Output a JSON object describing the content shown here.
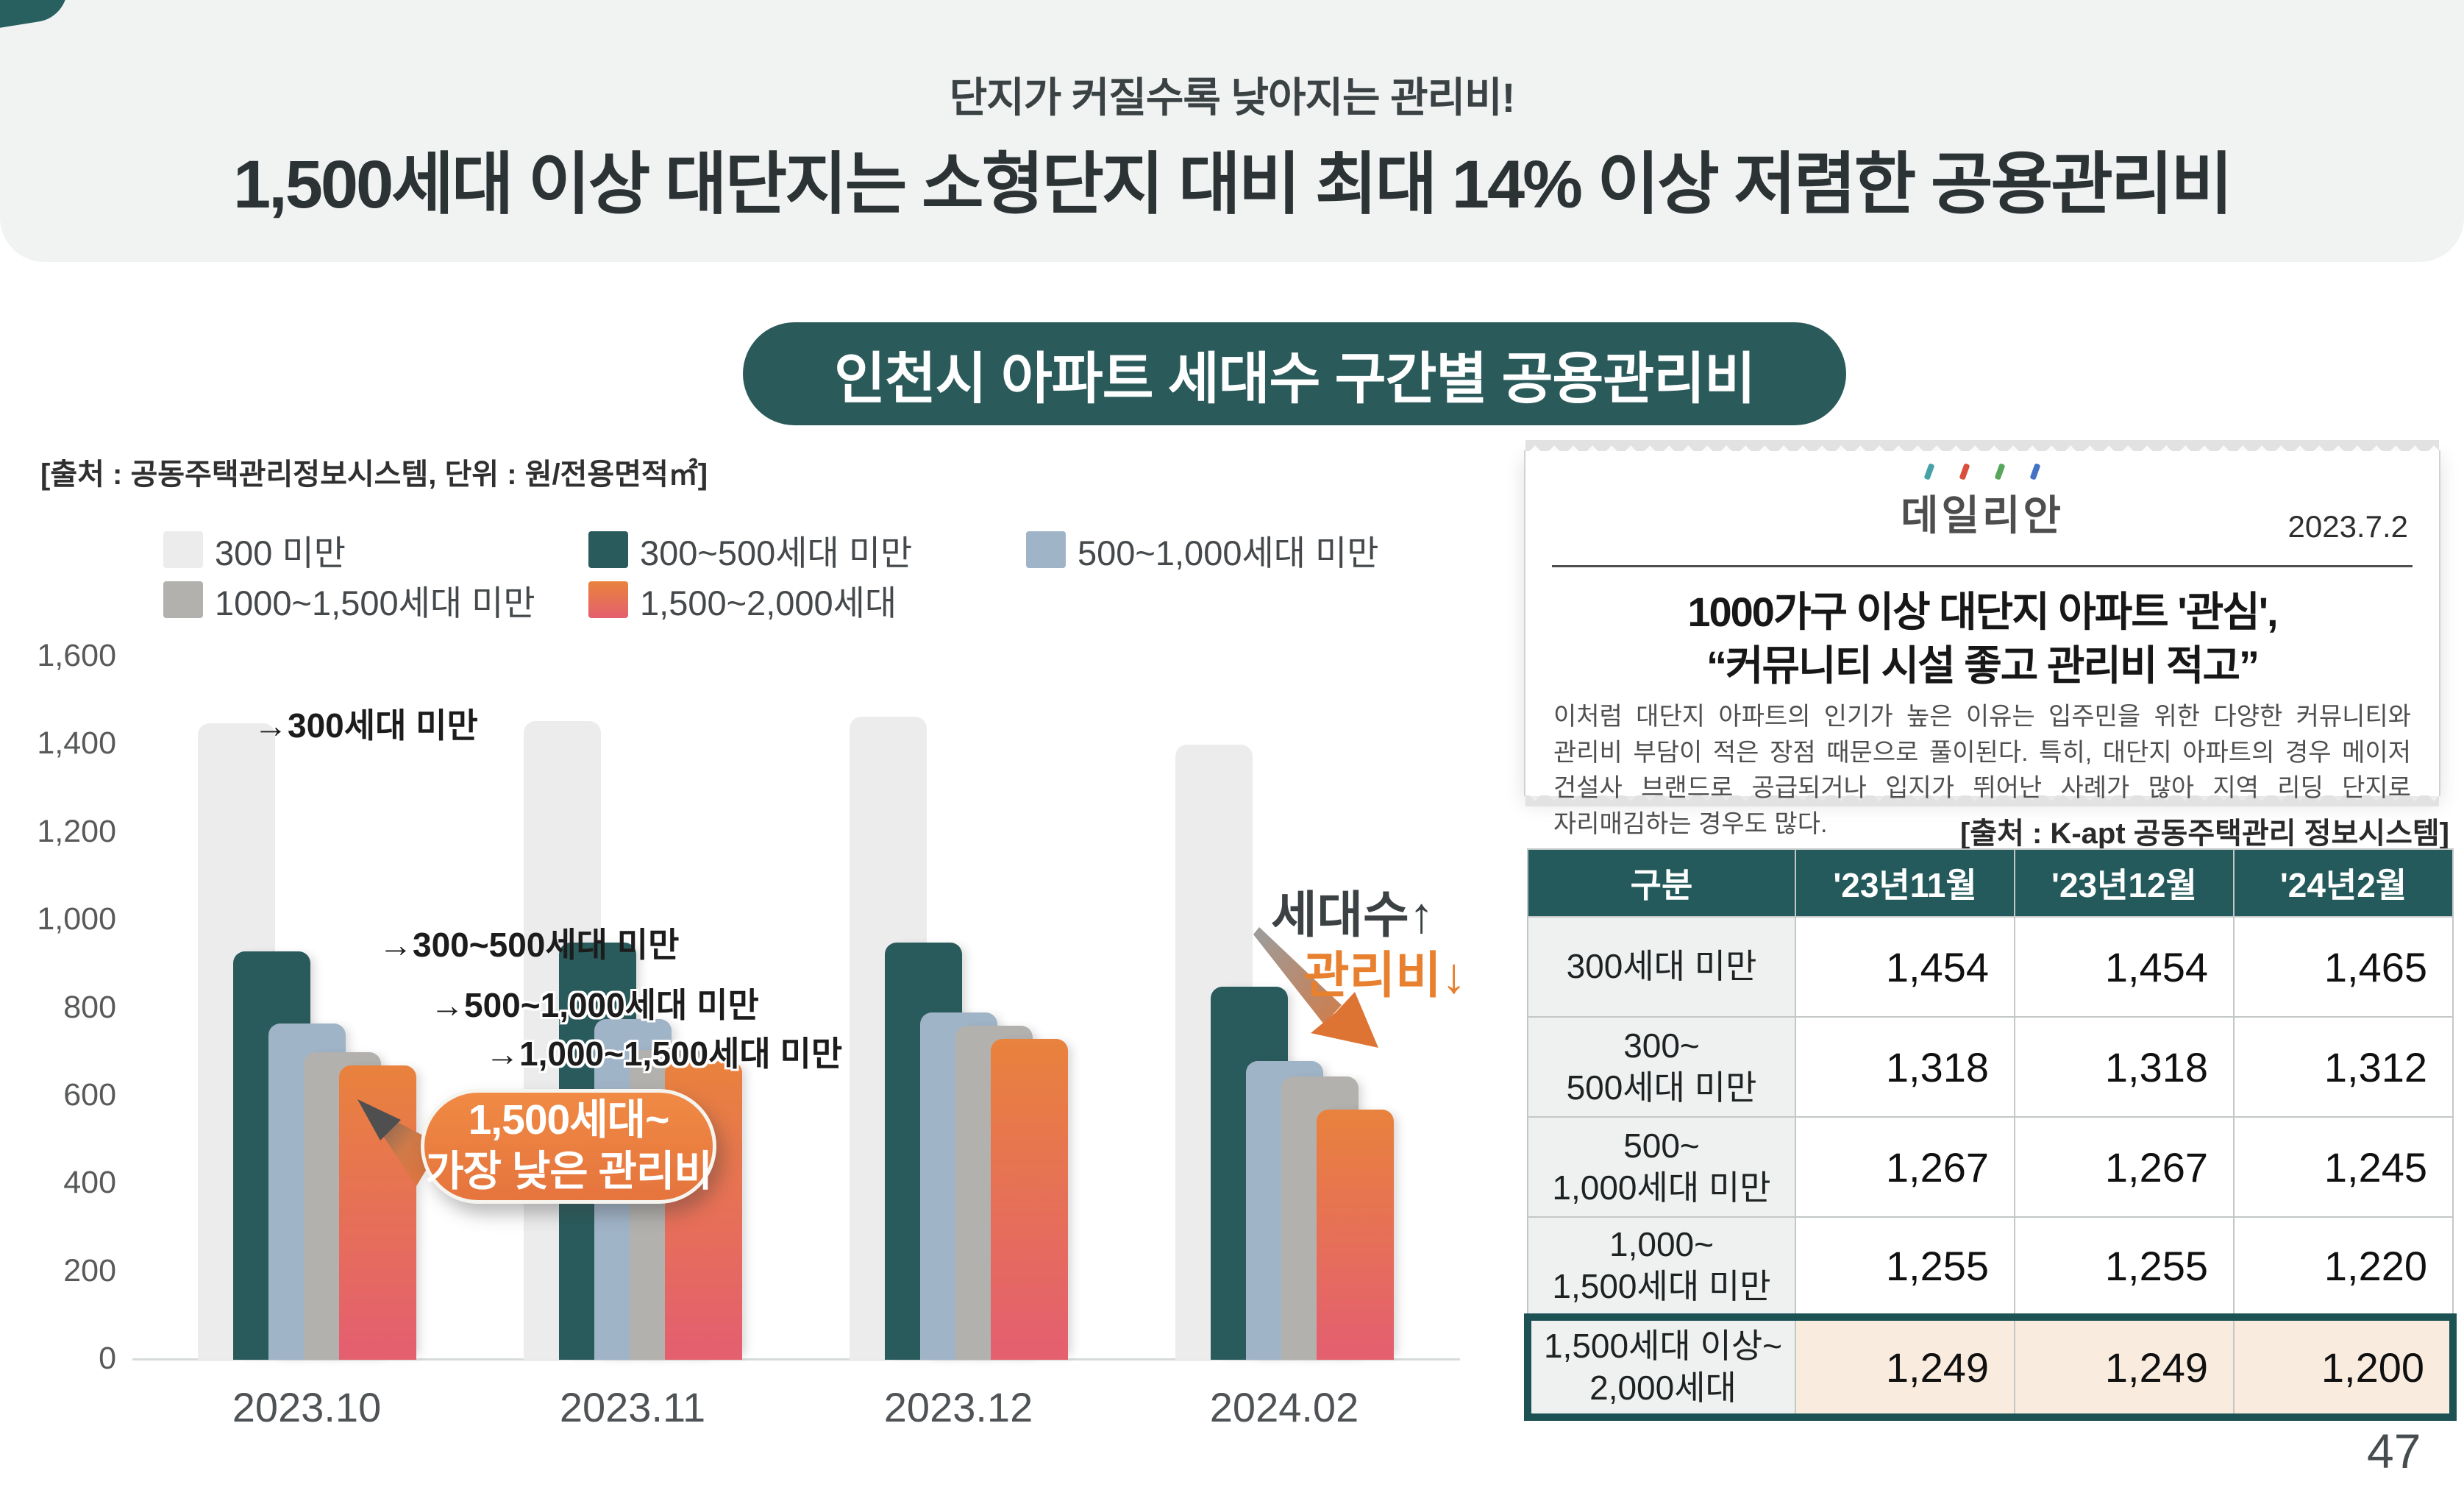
{
  "header": {
    "subtitle": "단지가 커질수록 낮아지는 관리비!",
    "title": "1,500세대 이상 대단지는 소형단지 대비 최대 14% 이상 저렴한 공용관리비"
  },
  "chart_badge": "인천시 아파트 세대수 구간별 공용관리비",
  "chart_source": "[출처 : 공동주택관리정보시스템, 단위 : 원/전용면적㎡]",
  "colors": {
    "accent_teal": "#2b5a5b",
    "table_header_teal": "#245a5b",
    "highlight_border": "#1d5254",
    "highlight_cell": "#f9ecdf",
    "orange": "#e8813c",
    "header_band": "#f1f3f3"
  },
  "chart_data": {
    "type": "bar",
    "title": "인천시 아파트 세대수 구간별 공용관리비",
    "xlabel": "",
    "ylabel": "원/전용면적㎡",
    "ylim": [
      0,
      1600
    ],
    "ytick_step": 200,
    "grid": false,
    "legend_position": "top",
    "categories": [
      "2023.10",
      "2023.11",
      "2023.12",
      "2024.02"
    ],
    "series": [
      {
        "name": "300 미만",
        "color": "#ececed",
        "values": [
          1450,
          1455,
          1465,
          1400
        ]
      },
      {
        "name": "300~500세대 미만",
        "color": "#2a5b5c",
        "values": [
          930,
          950,
          950,
          850
        ]
      },
      {
        "name": "500~1,000세대 미만",
        "color": "#a0b4c8",
        "values": [
          765,
          775,
          790,
          680
        ]
      },
      {
        "name": "1000~1,500세대 미만",
        "color": "#b2b1ae",
        "values": [
          700,
          705,
          760,
          645
        ]
      },
      {
        "name": "1,500~2,000세대",
        "color": "#e9823d",
        "color_bottom": "#e4606e",
        "values": [
          670,
          680,
          730,
          570
        ]
      }
    ],
    "annotations": [
      "→300세대 미만",
      "→300~500세대 미만",
      "→500~1,000세대 미만",
      "→1,000~1,500세대 미만"
    ],
    "callout": {
      "line1": "1,500세대~",
      "line2": "가장 낮은 관리비"
    },
    "trend": {
      "up": "세대수↑",
      "down": "관리비↓"
    }
  },
  "news": {
    "logo": "데일리안",
    "date": "2023.7.2",
    "headline_lines": [
      "1000가구 이상 대단지 아파트 '관심',",
      "“커뮤니티 시설 좋고 관리비 적고”"
    ],
    "body": "이처럼 대단지 아파트의 인기가 높은 이유는 입주민을 위한 다양한 커뮤니티와 관리비 부담이 적은 장점 때문으로 풀이된다. 특히, 대단지 아파트의 경우 메이저 건설사 브랜드로 공급되거나 입지가 뛰어난 사례가 많아 지역 리딩 단지로 자리매김하는 경우도 많다."
  },
  "table": {
    "source": "[출처 : K-apt 공동주택관리 정보시스템]",
    "headers": [
      "구분",
      "'23년11월",
      "'23년12월",
      "'24년2월"
    ],
    "rows": [
      {
        "label_lines": [
          "300세대 미만"
        ],
        "values": [
          "1,454",
          "1,454",
          "1,465"
        ],
        "highlight": false
      },
      {
        "label_lines": [
          "300~",
          "500세대 미만"
        ],
        "values": [
          "1,318",
          "1,318",
          "1,312"
        ],
        "highlight": false
      },
      {
        "label_lines": [
          "500~",
          "1,000세대 미만"
        ],
        "values": [
          "1,267",
          "1,267",
          "1,245"
        ],
        "highlight": false
      },
      {
        "label_lines": [
          "1,000~",
          "1,500세대 미만"
        ],
        "values": [
          "1,255",
          "1,255",
          "1,220"
        ],
        "highlight": false
      },
      {
        "label_lines": [
          "1,500세대 이상~",
          "2,000세대"
        ],
        "values": [
          "1,249",
          "1,249",
          "1,200"
        ],
        "highlight": true
      }
    ]
  },
  "page_number": "47"
}
